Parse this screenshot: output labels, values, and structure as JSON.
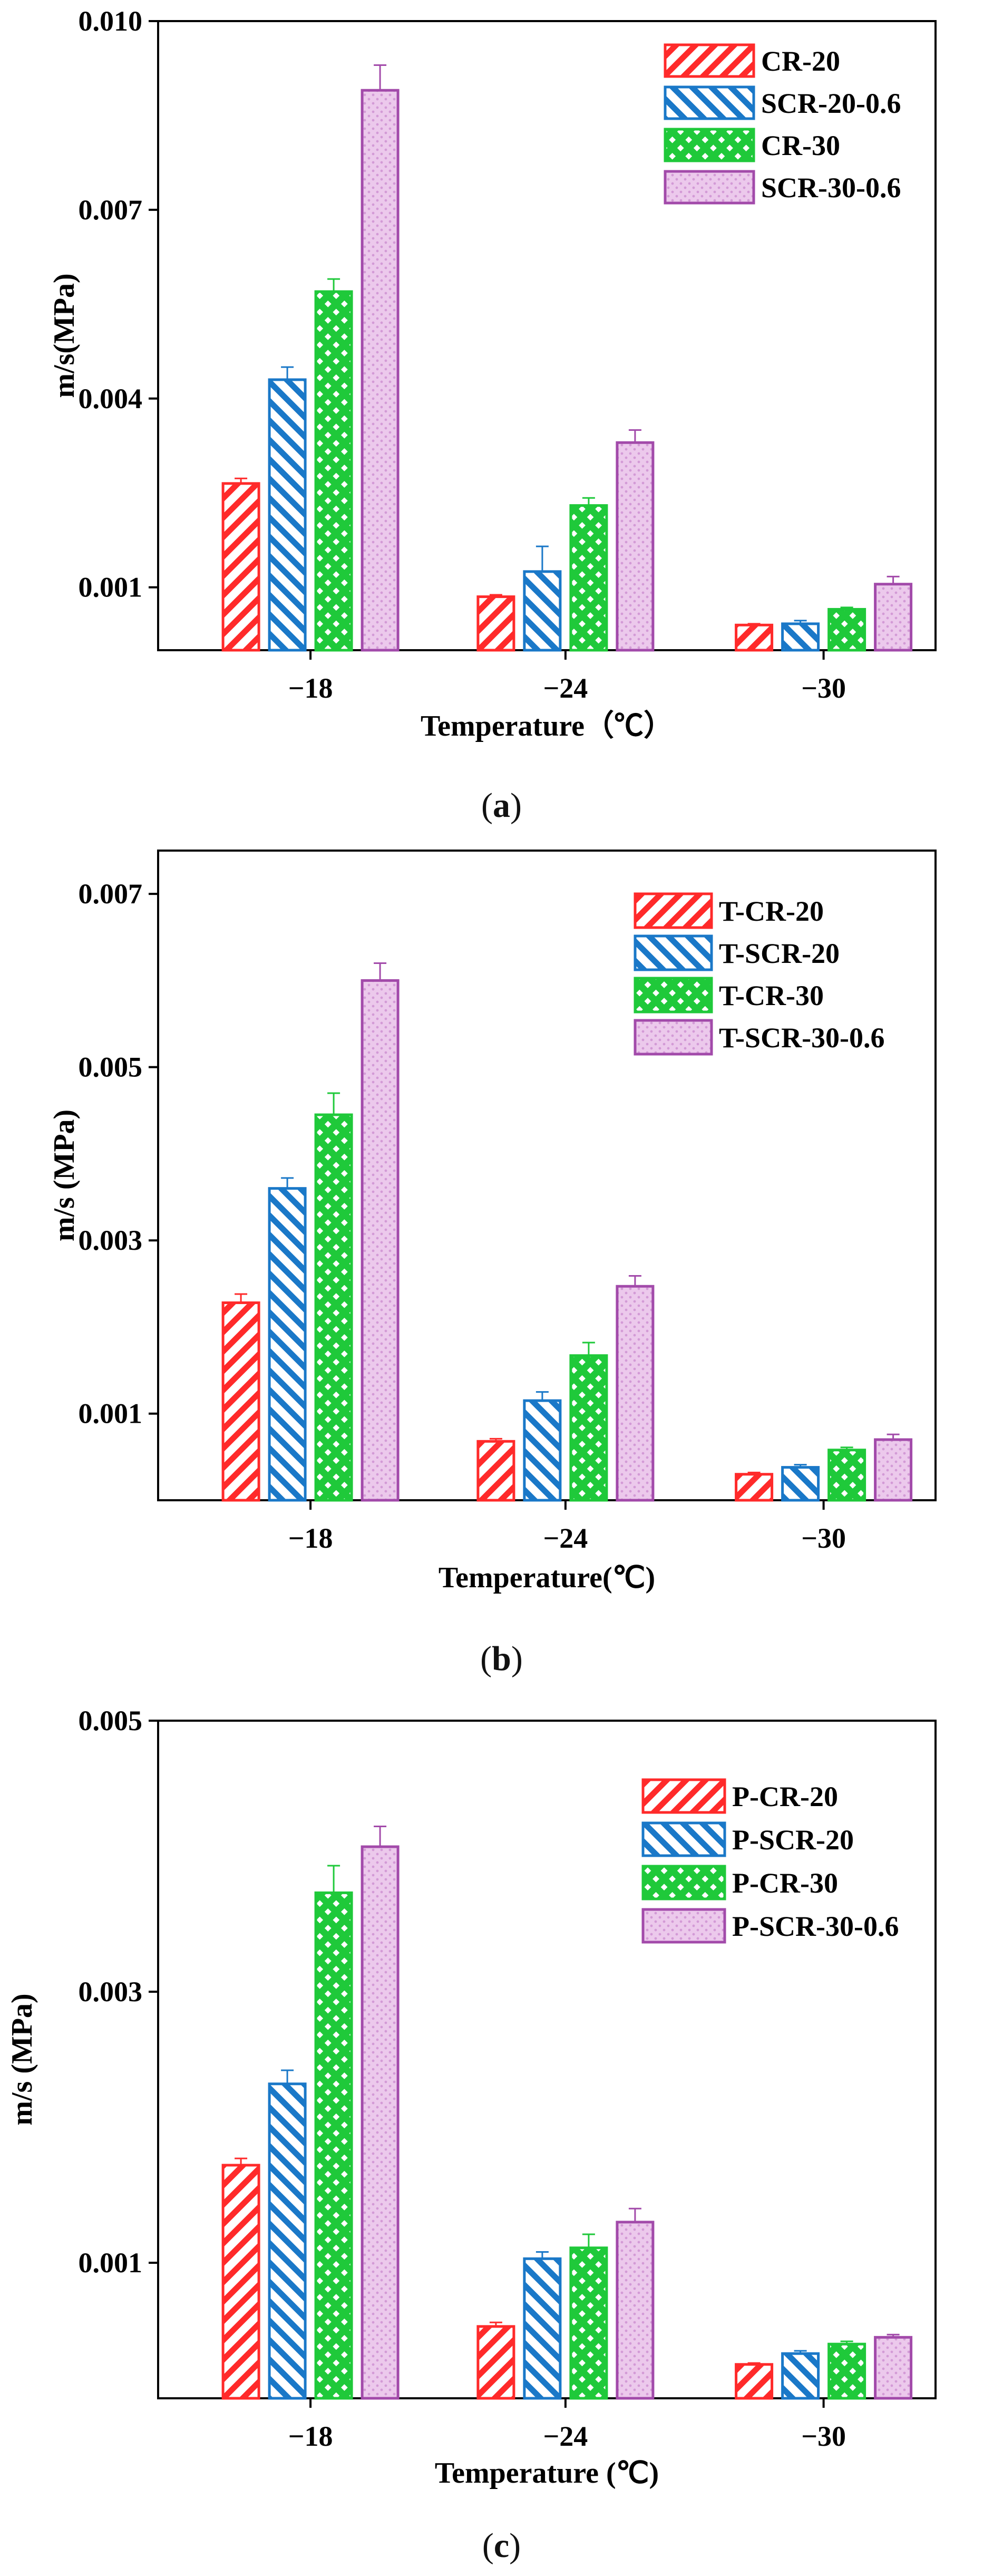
{
  "page": {
    "captions": [
      "a",
      "b",
      "c"
    ]
  },
  "colors": {
    "red": "#ff2a2a",
    "blue": "#1a78c8",
    "green": "#1fc93a",
    "purple": "#a24aaa",
    "purple_fill": "#ecc9ec"
  },
  "chart_data": [
    {
      "type": "bar",
      "title": "",
      "categories": [
        "−18",
        "−24",
        "−30"
      ],
      "xlabel": "Temperature（℃）",
      "ylabel": "m/s(MPa)",
      "ylim": [
        0.0,
        0.01
      ],
      "yticks": [
        0.001,
        0.004,
        0.007,
        0.01
      ],
      "ytick_labels": [
        "0.001",
        "0.004",
        "0.007",
        "0.010"
      ],
      "legend_position": "top-right",
      "series": [
        {
          "name": "CR-20",
          "values": [
            0.00265,
            0.00085,
            0.0004
          ],
          "errors": [
            8e-05,
            3e-05,
            2e-05
          ],
          "color": "red",
          "pattern": "hatch-fwd"
        },
        {
          "name": "SCR-20-0.6",
          "values": [
            0.0043,
            0.00125,
            0.00042
          ],
          "errors": [
            0.0002,
            0.0004,
            5e-05
          ],
          "color": "blue",
          "pattern": "hatch-back"
        },
        {
          "name": "CR-30",
          "values": [
            0.0057,
            0.0023,
            0.00065
          ],
          "errors": [
            0.0002,
            0.00012,
            3e-05
          ],
          "color": "green",
          "pattern": "cross"
        },
        {
          "name": "SCR-30-0.6",
          "values": [
            0.0089,
            0.0033,
            0.00105
          ],
          "errors": [
            0.0004,
            0.0002,
            0.00012
          ],
          "color": "purple",
          "pattern": "dots"
        }
      ]
    },
    {
      "type": "bar",
      "title": "",
      "categories": [
        "−18",
        "−24",
        "−30"
      ],
      "xlabel": "Temperature(℃)",
      "ylabel": "m/s (MPa)",
      "ylim": [
        0.0,
        0.0075
      ],
      "yticks": [
        0.001,
        0.003,
        0.005,
        0.007
      ],
      "ytick_labels": [
        "0.001",
        "0.003",
        "0.005",
        "0.007"
      ],
      "legend_position": "top-right",
      "series": [
        {
          "name": "T-CR-20",
          "values": [
            0.00228,
            0.00068,
            0.0003
          ],
          "errors": [
            0.0001,
            3e-05,
            2e-05
          ],
          "color": "red",
          "pattern": "hatch-fwd"
        },
        {
          "name": "T-SCR-20",
          "values": [
            0.0036,
            0.00115,
            0.00038
          ],
          "errors": [
            0.00012,
            0.0001,
            3e-05
          ],
          "color": "blue",
          "pattern": "hatch-back"
        },
        {
          "name": "T-CR-30",
          "values": [
            0.00445,
            0.00167,
            0.00058
          ],
          "errors": [
            0.00025,
            0.00015,
            3e-05
          ],
          "color": "green",
          "pattern": "cross"
        },
        {
          "name": "T-SCR-30-0.6",
          "values": [
            0.006,
            0.00247,
            0.0007
          ],
          "errors": [
            0.0002,
            0.00012,
            6e-05
          ],
          "color": "purple",
          "pattern": "dots"
        }
      ]
    },
    {
      "type": "bar",
      "title": "",
      "categories": [
        "−18",
        "−24",
        "−30"
      ],
      "xlabel": "Temperature (℃)",
      "ylabel": "m/s (MPa)",
      "ylim": [
        0.0,
        0.005
      ],
      "yticks": [
        0.001,
        0.003,
        0.005
      ],
      "ytick_labels": [
        "0.001",
        "0.003",
        "0.005"
      ],
      "legend_position": "top-right",
      "series": [
        {
          "name": "P-CR-20",
          "values": [
            0.00172,
            0.00053,
            0.00025
          ],
          "errors": [
            5e-05,
            3e-05,
            1e-05
          ],
          "color": "red",
          "pattern": "hatch-fwd"
        },
        {
          "name": "P-SCR-20",
          "values": [
            0.00232,
            0.00103,
            0.00033
          ],
          "errors": [
            0.0001,
            5e-05,
            2e-05
          ],
          "color": "blue",
          "pattern": "hatch-back"
        },
        {
          "name": "P-CR-30",
          "values": [
            0.00373,
            0.00111,
            0.0004
          ],
          "errors": [
            0.0002,
            0.0001,
            2e-05
          ],
          "color": "green",
          "pattern": "cross"
        },
        {
          "name": "P-SCR-30-0.6",
          "values": [
            0.00407,
            0.0013,
            0.00045
          ],
          "errors": [
            0.00015,
            0.0001,
            2e-05
          ],
          "color": "purple",
          "pattern": "dots"
        }
      ]
    }
  ]
}
